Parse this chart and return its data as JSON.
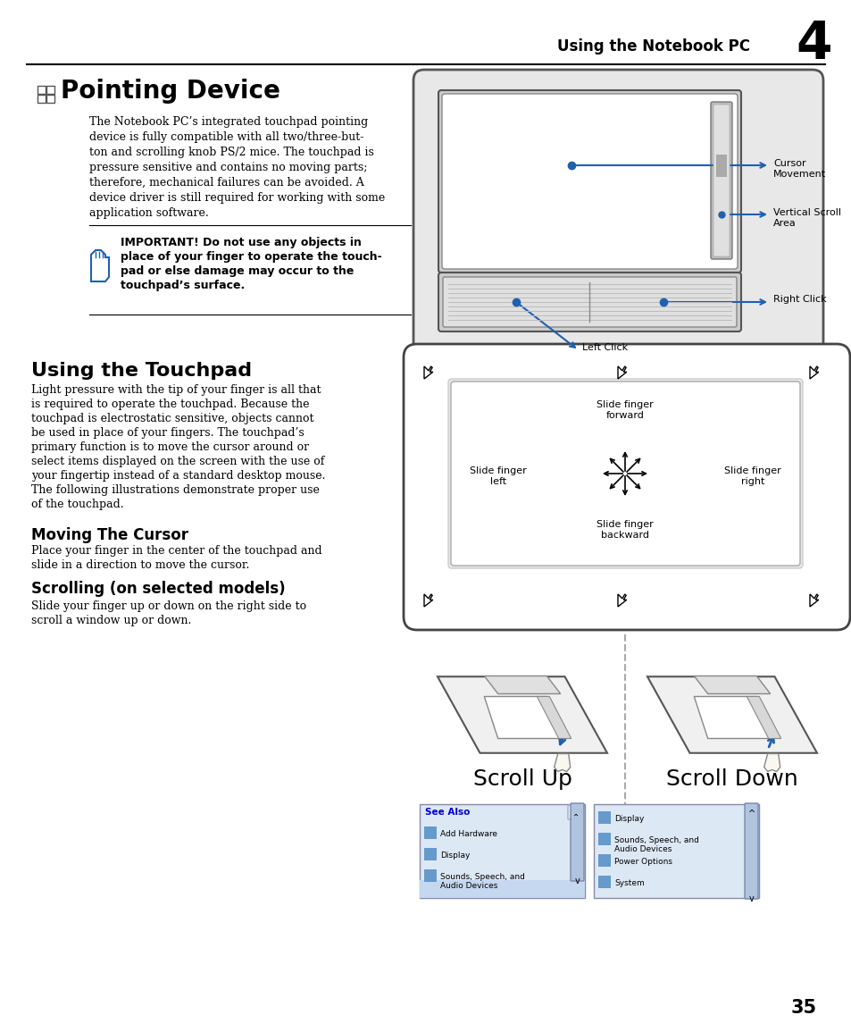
{
  "bg_color": "#ffffff",
  "header_text": "Using the Notebook PC",
  "header_number": "4",
  "page_number": "35",
  "title1": "Pointing Device",
  "body1_lines": [
    "The Notebook PC’s integrated touchpad pointing",
    "device is fully compatible with all two/three-but-",
    "ton and scrolling knob PS/2 mice. The touchpad is",
    "pressure sensitive and contains no moving parts;",
    "therefore, mechanical failures can be avoided. A",
    "device driver is still required for working with some",
    "application software."
  ],
  "important_lines": [
    "IMPORTANT! Do not use any objects in",
    "place of your finger to operate the touch-",
    "pad or else damage may occur to the",
    "touchpad’s surface."
  ],
  "title2": "Using the Touchpad",
  "body2_lines": [
    "Light pressure with the tip of your finger is all that",
    "is required to operate the touchpad. Because the",
    "touchpad is electrostatic sensitive, objects cannot",
    "be used in place of your fingers. The touchpad’s",
    "primary function is to move the cursor around or",
    "select items displayed on the screen with the use of",
    "your fingertip instead of a standard desktop mouse.",
    "The following illustrations demonstrate proper use",
    "of the touchpad."
  ],
  "subtitle1": "Moving The Cursor",
  "body3_lines": [
    "Place your finger in the center of the touchpad and",
    "slide in a direction to move the cursor."
  ],
  "subtitle2": "Scrolling (on selected models)",
  "body4_lines": [
    "Slide your finger up or down on the right side to",
    "scroll a window up or down."
  ],
  "accent_color": "#2060b0",
  "dark_color": "#333333",
  "scroll_up_label": "Scroll Up",
  "scroll_down_label": "Scroll Down",
  "left_items": [
    "Add Hardware",
    "Display",
    "Sounds, Speech, and\nAudio Devices"
  ],
  "right_items": [
    "Display",
    "Sounds, Speech, and\nAudio Devices",
    "Power Options",
    "System"
  ]
}
